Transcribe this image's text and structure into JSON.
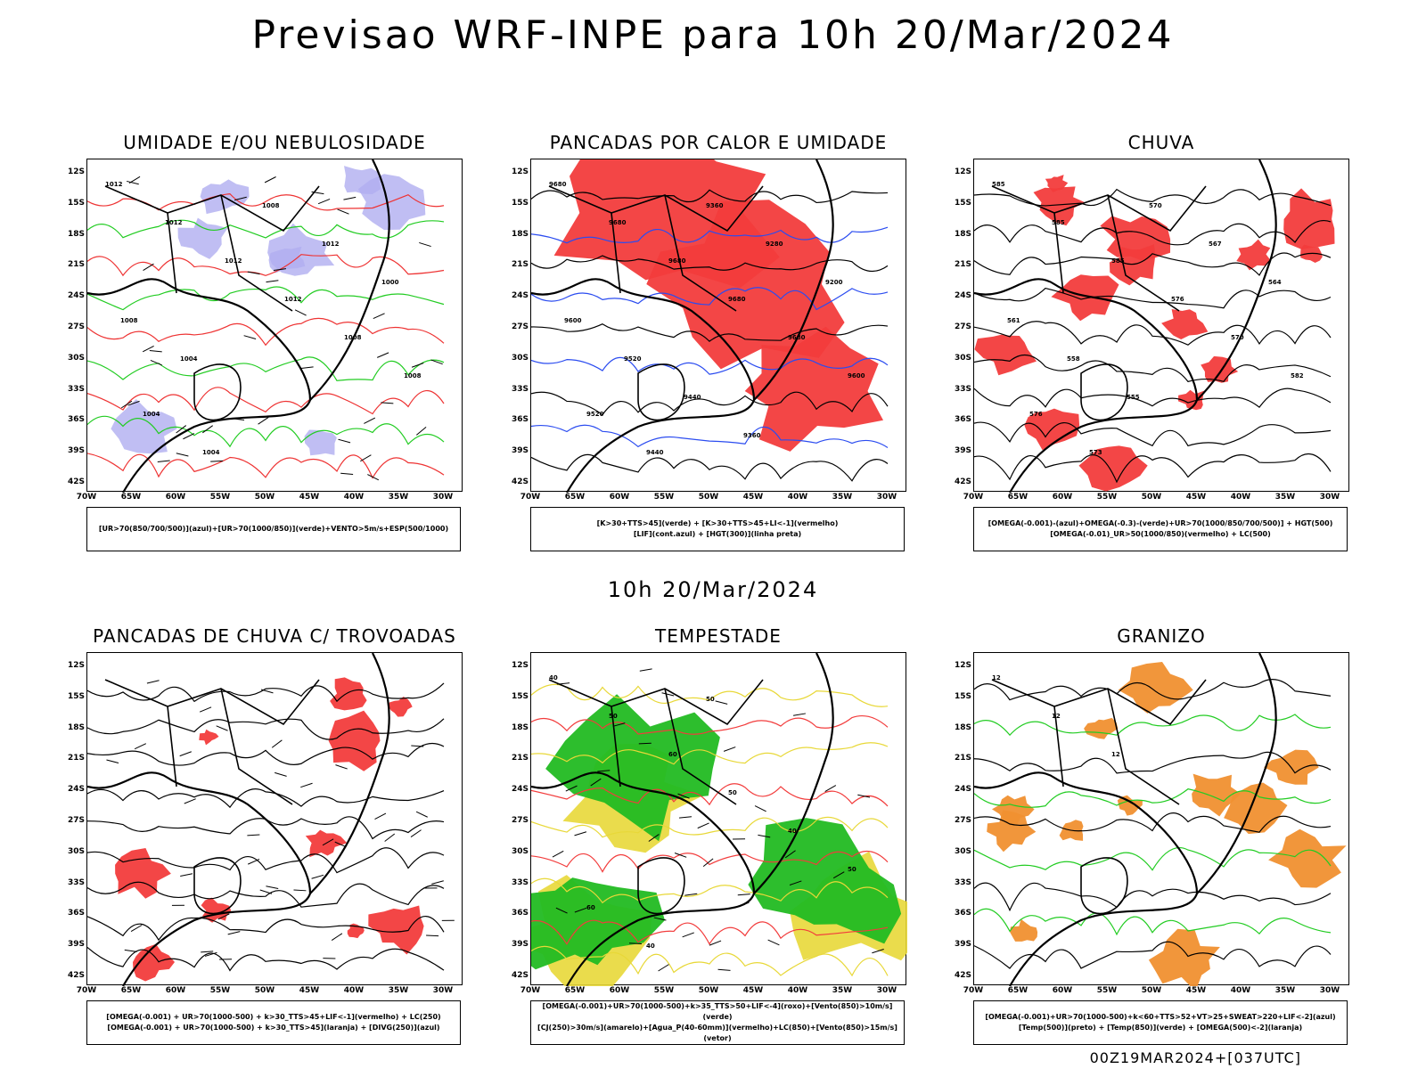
{
  "title": "Previsao WRF-INPE  para 10h 20/Mar/2024",
  "subtitle": "10h 20/Mar/2024",
  "footer": "00Z19MAR2024+[037UTC]",
  "latitude_labels": [
    "12S",
    "15S",
    "18S",
    "21S",
    "24S",
    "27S",
    "30S",
    "33S",
    "36S",
    "39S",
    "42S"
  ],
  "longitude_labels": [
    "70W",
    "65W",
    "60W",
    "55W",
    "50W",
    "45W",
    "40W",
    "35W",
    "30W"
  ],
  "panels": [
    {
      "title": "UMIDADE E/OU NEBULOSIDADE",
      "legend": [
        "[UR>70(850/700/500)](azul)+[UR>70(1000/850)](verde)+VENTO>5m/s+ESP(500/1000)"
      ],
      "contour_labels": [
        "1012",
        "1012",
        "1012",
        "1012",
        "1008",
        "1008",
        "1004",
        "1004",
        "1008",
        "1012",
        "1000",
        "1008",
        "1004"
      ],
      "colors": {
        "fill": "#b0aef0",
        "line1": "#22cc22",
        "line2": "#ee3333"
      }
    },
    {
      "title": "PANCADAS POR CALOR E UMIDADE",
      "legend": [
        "[K>30+TTS>45](verde) + [K>30+TTS>45+LI<-1](vermelho)",
        "[LIF](cont.azul) + [HGT(300)](linha preta)"
      ],
      "contour_labels": [
        "9680",
        "9680",
        "9680",
        "9680",
        "9680",
        "9600",
        "9520",
        "9440",
        "9360",
        "9280",
        "9200",
        "9600",
        "9520",
        "9440",
        "9360"
      ],
      "colors": {
        "fill": "#f23c3c",
        "line1": "#2b4cf0",
        "line2": "#000000"
      }
    },
    {
      "title": "CHUVA",
      "legend": [
        "[OMEGA(-0.001)-(azul)+OMEGA(-0.3)-(verde)+UR>70(1000/850/700/500)] + HGT(500)",
        "[OMEGA(-0.01)_UR>50(1000/850)(vermelho) + LC(500)"
      ],
      "contour_labels": [
        "585",
        "585",
        "585",
        "576",
        "570",
        "582",
        "576",
        "573",
        "570",
        "567",
        "564",
        "561",
        "558",
        "555"
      ],
      "colors": {
        "fill": "#f23c3c",
        "line1": "#1e3cf5",
        "line2": "#22cc22"
      }
    },
    {
      "title": "PANCADAS DE CHUVA C/ TROVOADAS",
      "legend": [
        "[OMEGA(-0.001) + UR>70(1000-500) + k>30_TTS>45+LIF<-1](vermelho) + LC(250)",
        "[OMEGA(-0.001) + UR>70(1000-500) + k>30_TTS>45](laranja) + [DIVG(250)](azul)"
      ],
      "contour_labels": [],
      "colors": {
        "fill": "#f23c3c",
        "line1": "#1e3cf5",
        "line2": "#f09030"
      }
    },
    {
      "title": "TEMPESTADE",
      "legend": [
        "[OMEGA(-0.001)+UR>70(1000-500)+k>35_TTS>50+LIF<-4](roxo)+[Vento(850)>10m/s](verde)",
        "[CJ(250)>30m/s](amarelo)+[Agua_P(40-60mm)](vermelho)+LC(850)+[Vento(850)>15m/s](vetor)"
      ],
      "contour_labels": [
        "40",
        "50",
        "60",
        "50",
        "40",
        "50",
        "60",
        "40",
        "50"
      ],
      "colors": {
        "fill": "#22bb22",
        "line1": "#f23c3c",
        "line2": "#e8d838"
      }
    },
    {
      "title": "GRANIZO",
      "legend": [
        "[OMEGA(-0.001)+UR>70(1000-500)+k<60+TTS>52+VT>25+SWEAT>220+LIF<-2](azul)",
        "[Temp(500)](preto) + [Temp(850)](verde) + [OMEGA(500)<-2](laranja)"
      ],
      "contour_labels": [
        "12",
        "12",
        "12"
      ],
      "colors": {
        "fill": "#f09030",
        "line1": "#22cc22",
        "line2": "#000000"
      }
    }
  ]
}
